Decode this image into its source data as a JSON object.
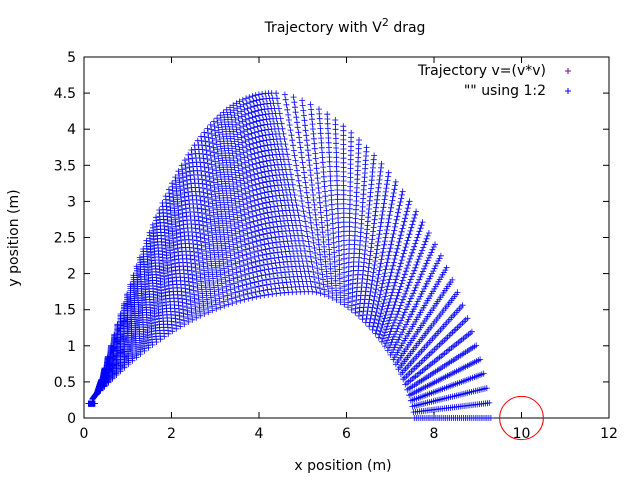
{
  "chart_data": {
    "type": "scatter",
    "title": {
      "prefix": "Trajectory with V",
      "superscript": "2",
      "suffix": " drag"
    },
    "xlabel": "x position (m)",
    "ylabel": "y position (m)",
    "xlim": [
      0,
      12
    ],
    "ylim": [
      0,
      5
    ],
    "xticks": [
      0,
      2,
      4,
      6,
      8,
      10,
      12
    ],
    "yticks": [
      0,
      0.5,
      1,
      1.5,
      2,
      2.5,
      3,
      3.5,
      4,
      4.5,
      5
    ],
    "grid": false,
    "legend_position": "top-right",
    "series": [
      {
        "name": "Trajectory v=(v*v)",
        "color": "#8b008b",
        "marker": "plus",
        "points": []
      },
      {
        "name": "\"\" using 1:2",
        "color": "#0000ff",
        "marker": "plus",
        "family": {
          "count": 40,
          "x_start_first": 0.1,
          "x_start_last": 0.25,
          "apex_x_first": 5.2,
          "apex_x_last": 4.35,
          "apex_y_first": 1.75,
          "apex_y_last": 4.5,
          "end_x_first": 7.55,
          "end_x_last": 9.3,
          "end_y_first": 0,
          "end_y_last": 0,
          "points_per_curve": 90
        }
      }
    ],
    "annotations": [
      {
        "shape": "circle",
        "center": [
          10,
          0
        ],
        "radius_x": 0.5,
        "radius_y": 0.3,
        "color": "#ff0000"
      }
    ]
  }
}
